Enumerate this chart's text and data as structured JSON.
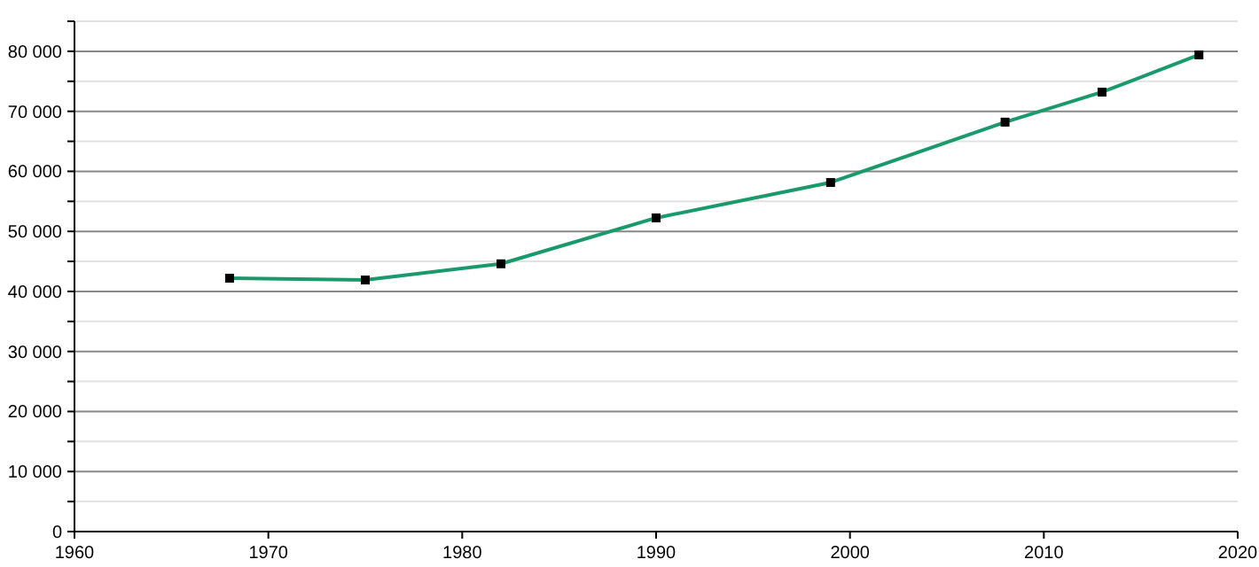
{
  "chart_data": {
    "type": "line",
    "x": [
      1968,
      1975,
      1982,
      1990,
      1999,
      2008,
      2013,
      2018
    ],
    "series": [
      {
        "color": "#1a9a6c",
        "values": [
          42200,
          41900,
          44600,
          52250,
          58150,
          68200,
          73200,
          79400
        ]
      }
    ],
    "xlim": [
      1960,
      2020
    ],
    "xticks": [
      {
        "value": 1960,
        "label": "1960"
      },
      {
        "value": 1970,
        "label": "1970"
      },
      {
        "value": 1980,
        "label": "1980"
      },
      {
        "value": 1990,
        "label": "1990"
      },
      {
        "value": 2000,
        "label": "2000"
      },
      {
        "value": 2010,
        "label": "2010"
      },
      {
        "value": 2020,
        "label": "2020"
      }
    ],
    "ylim": [
      0,
      85000
    ],
    "yticks": [
      {
        "value": 0,
        "label": "0"
      },
      {
        "value": 5000,
        "label": null
      },
      {
        "value": 10000,
        "label": "10 000"
      },
      {
        "value": 15000,
        "label": null
      },
      {
        "value": 20000,
        "label": "20 000"
      },
      {
        "value": 25000,
        "label": null
      },
      {
        "value": 30000,
        "label": "30 000"
      },
      {
        "value": 35000,
        "label": null
      },
      {
        "value": 40000,
        "label": "40 000"
      },
      {
        "value": 45000,
        "label": null
      },
      {
        "value": 50000,
        "label": "50 000"
      },
      {
        "value": 55000,
        "label": null
      },
      {
        "value": 60000,
        "label": "60 000"
      },
      {
        "value": 65000,
        "label": null
      },
      {
        "value": 70000,
        "label": "70 000"
      },
      {
        "value": 75000,
        "label": null
      },
      {
        "value": 80000,
        "label": "80 000"
      },
      {
        "value": 85000,
        "label": null
      }
    ],
    "grid": "y",
    "marker": "square",
    "line_style": "solid"
  }
}
